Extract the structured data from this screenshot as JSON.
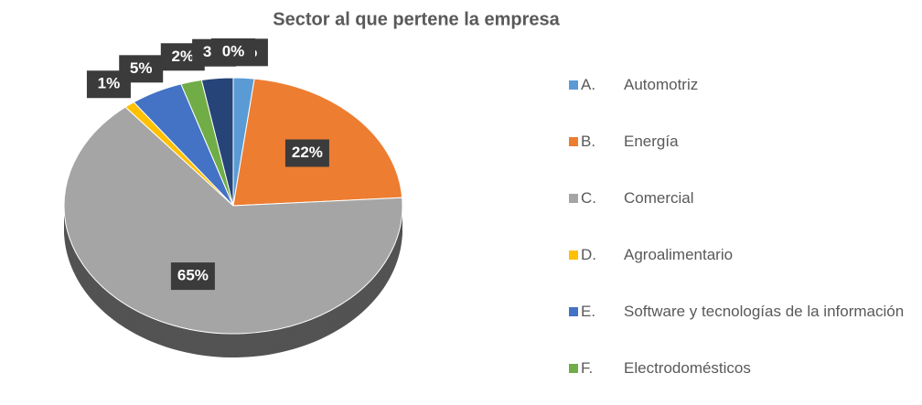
{
  "chart_data": {
    "type": "pie",
    "title": "Sector al que pertene la empresa",
    "categories": [
      "A.\tAutomotriz",
      "B.\tEnergía",
      "C.\tComercial",
      "D.\tAgroalimentario",
      "E.\tSoftware y tecnologías de la información",
      "F.\tElectrodomésticos",
      null,
      null
    ],
    "values": [
      2,
      22,
      65,
      1,
      5,
      2,
      3,
      0
    ],
    "value_labels": [
      "2%",
      "22%",
      "65%",
      "1%",
      "5%",
      "2%",
      "3%",
      "0%"
    ],
    "colors": [
      "#5b9bd5",
      "#ed7d31",
      "#a5a5a5",
      "#ffc000",
      "#4472c4",
      "#70ad47",
      "#264478",
      "#9e480e"
    ],
    "legend": "right"
  }
}
